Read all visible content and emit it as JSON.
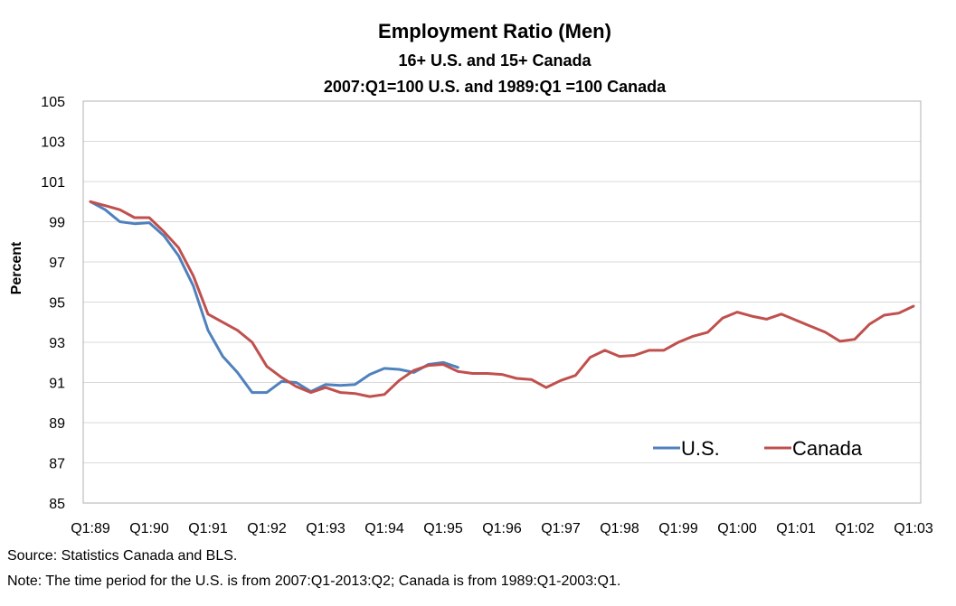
{
  "chart_data": {
    "type": "line",
    "title": "Employment Ratio (Men)",
    "subtitle": "16+ U.S. and 15+ Canada",
    "subtitle2": "2007:Q1=100 U.S. and 1989:Q1 =100 Canada",
    "xlabel": "",
    "ylabel": "Percent",
    "ylim": [
      85,
      105
    ],
    "yticks": [
      "85",
      "87",
      "89",
      "91",
      "93",
      "95",
      "97",
      "99",
      "101",
      "103",
      "105"
    ],
    "xtick_labels": [
      "Q1:89",
      "Q1:90",
      "Q1:91",
      "Q1:92",
      "Q1:93",
      "Q1:94",
      "Q1:95",
      "Q1:96",
      "Q1:97",
      "Q1:98",
      "Q1:99",
      "Q1:00",
      "Q1:01",
      "Q1:02",
      "Q1:03"
    ],
    "grid": true,
    "legend_position": "bottom-right",
    "series": [
      {
        "name": "U.S.",
        "color": "#4F81BD",
        "start": "Q1:89",
        "values": [
          100.0,
          99.6,
          99.0,
          98.9,
          98.95,
          98.3,
          97.3,
          95.8,
          93.6,
          92.3,
          91.5,
          90.5,
          90.5,
          91.05,
          91.0,
          90.55,
          90.9,
          90.85,
          90.9,
          91.4,
          91.7,
          91.65,
          91.5,
          91.9,
          92.0,
          91.75
        ]
      },
      {
        "name": "Canada",
        "color": "#C0504D",
        "start": "Q1:89",
        "values": [
          100.0,
          99.8,
          99.6,
          99.2,
          99.2,
          98.5,
          97.7,
          96.3,
          94.4,
          94.0,
          93.6,
          93.0,
          91.8,
          91.25,
          90.8,
          90.5,
          90.75,
          90.5,
          90.45,
          90.3,
          90.4,
          91.1,
          91.6,
          91.85,
          91.9,
          91.55,
          91.45,
          91.45,
          91.4,
          91.2,
          91.15,
          90.75,
          91.1,
          91.35,
          92.25,
          92.6,
          92.3,
          92.35,
          92.6,
          92.6,
          93.0,
          93.3,
          93.5,
          94.2,
          94.5,
          94.3,
          94.15,
          94.4,
          94.1,
          93.8,
          93.5,
          93.05,
          93.15,
          93.9,
          94.35,
          94.45,
          94.8
        ]
      }
    ]
  },
  "footer": {
    "source": "Source: Statistics Canada and BLS.",
    "note": "Note: The time period for the U.S. is from 2007:Q1-2013:Q2; Canada is from 1989:Q1-2003:Q1."
  }
}
